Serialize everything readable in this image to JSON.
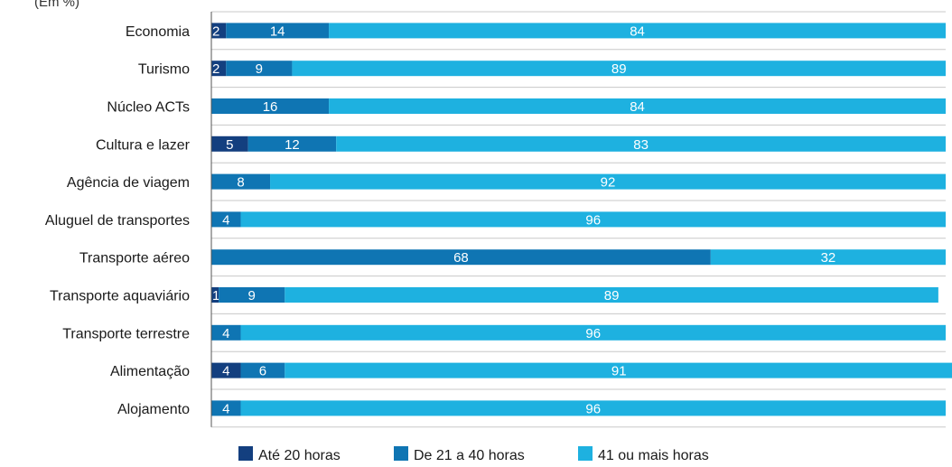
{
  "chart_data": {
    "type": "bar",
    "orientation": "horizontal",
    "stacked": true,
    "unit_label": "(Em %)",
    "categories": [
      "Economia",
      "Turismo",
      "Núcleo ACTs",
      "Cultura e lazer",
      "Agência de viagem",
      "Aluguel de transportes",
      "Transporte aéreo",
      "Transporte aquaviário",
      "Transporte terrestre",
      "Alimentação",
      "Alojamento"
    ],
    "series": [
      {
        "name": "Até 20 horas",
        "color": "#133f7f",
        "values": [
          2,
          2,
          0,
          5,
          0,
          0,
          0,
          1,
          0,
          4,
          0
        ]
      },
      {
        "name": "De 21 a 40 horas",
        "color": "#0f75b3",
        "values": [
          14,
          9,
          16,
          12,
          8,
          4,
          68,
          9,
          4,
          6,
          4
        ]
      },
      {
        "name": "41 ou mais horas",
        "color": "#1eb1e0",
        "values": [
          84,
          89,
          84,
          83,
          92,
          96,
          32,
          89,
          96,
          91,
          96
        ]
      }
    ],
    "xlim": [
      0,
      100
    ],
    "grid": "horizontal",
    "legend_position": "bottom"
  }
}
